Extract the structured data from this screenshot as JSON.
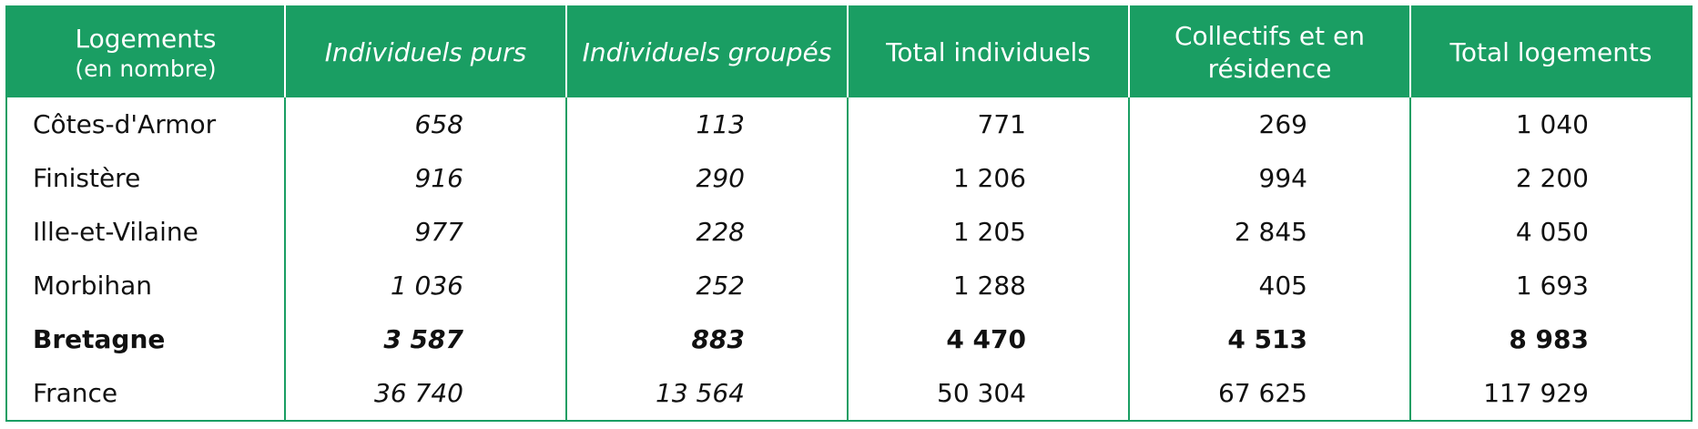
{
  "table": {
    "header": [
      "Logements",
      "Individuels purs",
      "Individuels groupés",
      "Total individuels",
      "Collectifs et en résidence",
      "Total logements"
    ],
    "header_note": "(en nombre)",
    "rows": [
      [
        "Côtes-d'Armor",
        "658",
        "113",
        "771",
        "269",
        "1 040"
      ],
      [
        "Finistère",
        "916",
        "290",
        "1 206",
        "994",
        "2 200"
      ],
      [
        "Ille-et-Vilaine",
        "977",
        "228",
        "1 205",
        "2 845",
        "4 050"
      ],
      [
        "Morbihan",
        "1 036",
        "252",
        "1 288",
        "405",
        "1 693"
      ],
      [
        "Bretagne",
        "3 587",
        "883",
        "4 470",
        "4 513",
        "8 983"
      ],
      [
        "France",
        "36 740",
        "13 564",
        "50 304",
        "67 625",
        "117 929"
      ]
    ]
  }
}
